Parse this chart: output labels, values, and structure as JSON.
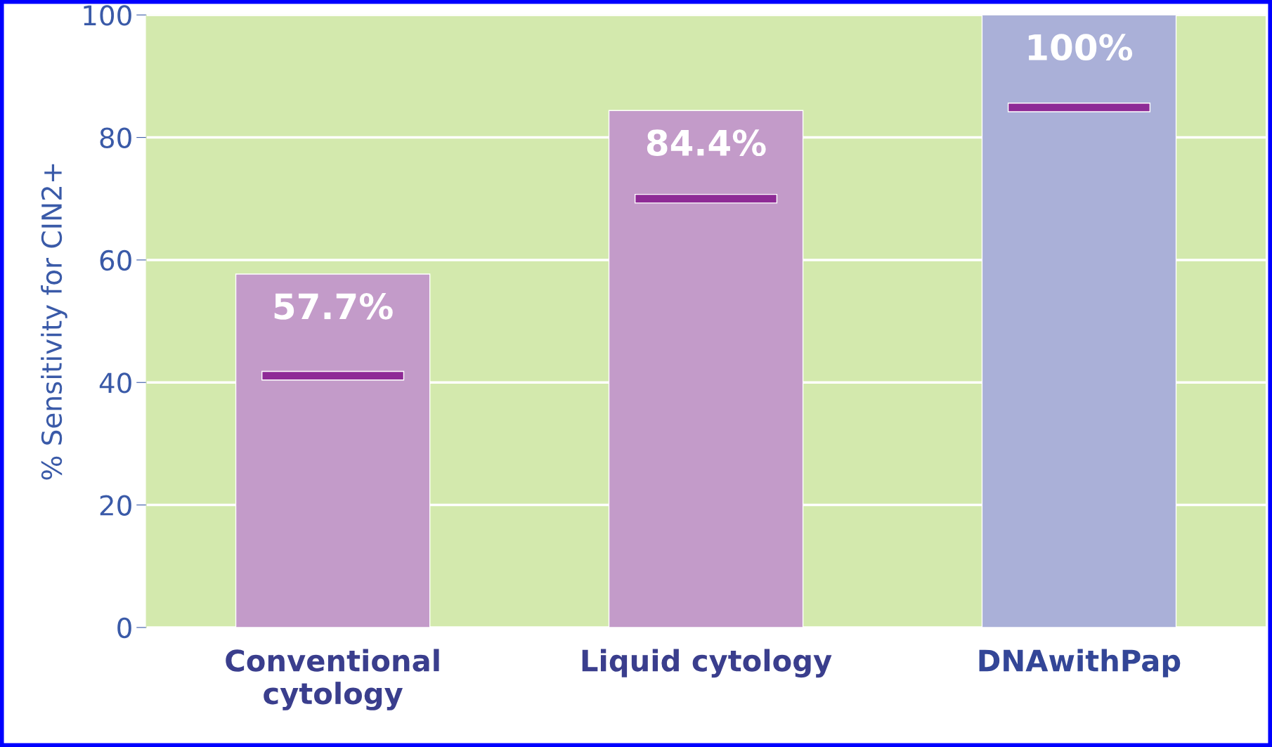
{
  "chart_data": {
    "type": "bar",
    "ylabel": "% Sensitivity for CIN2+",
    "categories": [
      "Conventional\ncytology",
      "Liquid cytology",
      "DNAwithPap"
    ],
    "series": [
      {
        "colors": [
          "#c39bc9",
          "#c39bc9",
          "#aab0d8"
        ],
        "values": [
          57.7,
          84.4,
          100
        ],
        "value_labels": [
          "57.7%",
          "84.4%",
          "100%"
        ]
      },
      {
        "color": "#8e2a96",
        "base": [
          40.4,
          69.3,
          84.2
        ],
        "values": [
          1.4,
          1.4,
          1.4
        ]
      }
    ],
    "ylim": [
      0,
      100
    ],
    "yticks": [
      0,
      20,
      40,
      60,
      80,
      100
    ],
    "grid": "y"
  }
}
